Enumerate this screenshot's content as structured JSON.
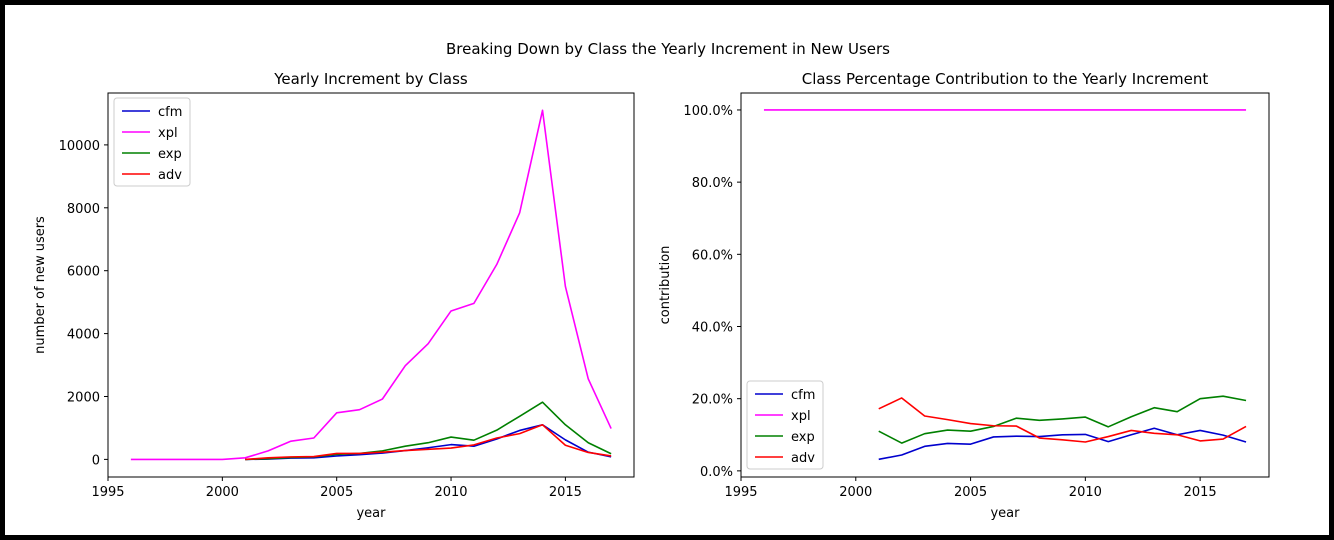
{
  "figure": {
    "suptitle": "Breaking Down by Class the Yearly Increment in New Users"
  },
  "colors": {
    "cfm": "#0000cd",
    "xpl": "#ff00ff",
    "exp": "#008000",
    "adv": "#ff0000"
  },
  "chart_data": [
    {
      "type": "line",
      "title": "Yearly Increment by Class",
      "xlabel": "year",
      "ylabel": "number of new users",
      "xlim": [
        1995,
        2018
      ],
      "ylim": [
        -560,
        11650
      ],
      "xticks": [
        1995,
        2000,
        2005,
        2010,
        2015
      ],
      "yticks": [
        0,
        2000,
        4000,
        6000,
        8000,
        10000
      ],
      "ytick_format": "int",
      "grid": false,
      "legend": "upper left",
      "series": [
        {
          "name": "cfm",
          "x": [
            2001,
            2002,
            2003,
            2004,
            2005,
            2006,
            2007,
            2008,
            2009,
            2010,
            2011,
            2012,
            2013,
            2014,
            2015,
            2016,
            2017
          ],
          "values": [
            0,
            10,
            40,
            50,
            110,
            150,
            200,
            280,
            370,
            470,
            420,
            650,
            920,
            1100,
            620,
            230,
            80
          ]
        },
        {
          "name": "xpl",
          "x": [
            1996,
            1997,
            1998,
            1999,
            2000,
            2001,
            2002,
            2003,
            2004,
            2005,
            2006,
            2007,
            2008,
            2009,
            2010,
            2011,
            2012,
            2013,
            2014,
            2015,
            2016,
            2017
          ],
          "values": [
            0,
            0,
            0,
            0,
            0,
            50,
            270,
            580,
            680,
            1480,
            1580,
            1920,
            2980,
            3680,
            4720,
            4960,
            6200,
            7840,
            11100,
            5500,
            2560,
            980
          ]
        },
        {
          "name": "exp",
          "x": [
            2001,
            2002,
            2003,
            2004,
            2005,
            2006,
            2007,
            2008,
            2009,
            2010,
            2011,
            2012,
            2013,
            2014,
            2015,
            2016,
            2017
          ],
          "values": [
            0,
            20,
            60,
            80,
            160,
            190,
            270,
            420,
            530,
            710,
            610,
            930,
            1370,
            1820,
            1100,
            530,
            180
          ]
        },
        {
          "name": "adv",
          "x": [
            2001,
            2002,
            2003,
            2004,
            2005,
            2006,
            2007,
            2008,
            2009,
            2010,
            2011,
            2012,
            2013,
            2014,
            2015,
            2016,
            2017
          ],
          "values": [
            0,
            50,
            80,
            90,
            190,
            190,
            230,
            280,
            320,
            360,
            460,
            680,
            820,
            1100,
            450,
            220,
            110
          ]
        }
      ]
    },
    {
      "type": "line",
      "title": "Class Percentage Contribution to the Yearly Increment",
      "xlabel": "year",
      "ylabel": "contribution",
      "xlim": [
        1995,
        2018
      ],
      "ylim": [
        -0.017,
        1.047
      ],
      "xticks": [
        1995,
        2000,
        2005,
        2010,
        2015
      ],
      "yticks": [
        0,
        0.2,
        0.4,
        0.6,
        0.8,
        1.0
      ],
      "ytick_format": "percent",
      "grid": false,
      "legend": "lower left",
      "series": [
        {
          "name": "cfm",
          "x": [
            2001,
            2002,
            2003,
            2004,
            2005,
            2006,
            2007,
            2008,
            2009,
            2010,
            2011,
            2012,
            2013,
            2014,
            2015,
            2016,
            2017
          ],
          "values": [
            0.032,
            0.044,
            0.068,
            0.076,
            0.074,
            0.094,
            0.096,
            0.095,
            0.1,
            0.101,
            0.081,
            0.1,
            0.118,
            0.1,
            0.112,
            0.099,
            0.08
          ]
        },
        {
          "name": "xpl",
          "x": [
            1996,
            1997,
            1998,
            1999,
            2000,
            2001,
            2002,
            2003,
            2004,
            2005,
            2006,
            2007,
            2008,
            2009,
            2010,
            2011,
            2012,
            2013,
            2014,
            2015,
            2016,
            2017
          ],
          "values": [
            1.0,
            1.0,
            1.0,
            1.0,
            1.0,
            1.0,
            1.0,
            1.0,
            1.0,
            1.0,
            1.0,
            1.0,
            1.0,
            1.0,
            1.0,
            1.0,
            1.0,
            1.0,
            1.0,
            1.0,
            1.0,
            1.0
          ]
        },
        {
          "name": "exp",
          "x": [
            2001,
            2002,
            2003,
            2004,
            2005,
            2006,
            2007,
            2008,
            2009,
            2010,
            2011,
            2012,
            2013,
            2014,
            2015,
            2016,
            2017
          ],
          "values": [
            0.11,
            0.077,
            0.103,
            0.113,
            0.11,
            0.123,
            0.146,
            0.14,
            0.144,
            0.149,
            0.122,
            0.15,
            0.175,
            0.164,
            0.2,
            0.207,
            0.195
          ]
        },
        {
          "name": "adv",
          "x": [
            2001,
            2002,
            2003,
            2004,
            2005,
            2006,
            2007,
            2008,
            2009,
            2010,
            2011,
            2012,
            2013,
            2014,
            2015,
            2016,
            2017
          ],
          "values": [
            0.172,
            0.202,
            0.152,
            0.142,
            0.131,
            0.125,
            0.124,
            0.091,
            0.086,
            0.08,
            0.095,
            0.112,
            0.104,
            0.1,
            0.083,
            0.088,
            0.123
          ]
        }
      ]
    }
  ]
}
